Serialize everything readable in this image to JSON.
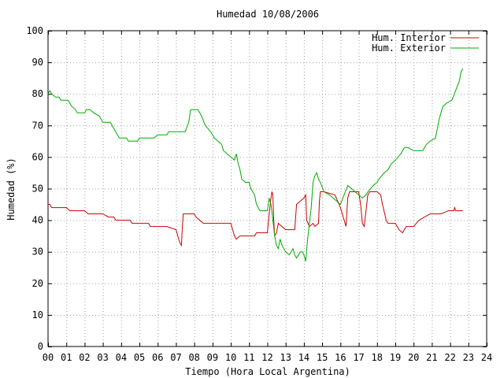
{
  "chart_data": {
    "type": "line",
    "title": "Humedad 10/08/2006",
    "xlabel": "Tiempo (Hora Local Argentina)",
    "ylabel": "Humedad (%)",
    "xlim": [
      0,
      24
    ],
    "ylim": [
      0,
      100
    ],
    "x_ticks": [
      0,
      1,
      2,
      3,
      4,
      5,
      6,
      7,
      8,
      9,
      10,
      11,
      12,
      13,
      14,
      15,
      16,
      17,
      18,
      19,
      20,
      21,
      22,
      23,
      24
    ],
    "x_tick_labels": [
      "00",
      "01",
      "02",
      "03",
      "04",
      "05",
      "06",
      "07",
      "08",
      "09",
      "10",
      "11",
      "12",
      "13",
      "14",
      "15",
      "16",
      "17",
      "18",
      "19",
      "20",
      "21",
      "22",
      "23",
      "24"
    ],
    "y_ticks": [
      0,
      10,
      20,
      30,
      40,
      50,
      60,
      70,
      80,
      90,
      100
    ],
    "y_tick_labels": [
      "0",
      "10",
      "20",
      "30",
      "40",
      "50",
      "60",
      "70",
      "80",
      "90",
      "100"
    ],
    "grid": true,
    "legend_position": "top-right",
    "series": [
      {
        "name": "Hum. Interior",
        "color": "#cc0000",
        "points": [
          [
            0,
            45
          ],
          [
            0.1,
            45
          ],
          [
            0.2,
            44
          ],
          [
            1,
            44
          ],
          [
            1.2,
            43
          ],
          [
            2,
            43
          ],
          [
            2.2,
            42
          ],
          [
            3,
            42
          ],
          [
            3.3,
            41
          ],
          [
            3.6,
            41
          ],
          [
            3.7,
            40
          ],
          [
            4.5,
            40
          ],
          [
            4.6,
            39
          ],
          [
            5.5,
            39
          ],
          [
            5.6,
            38
          ],
          [
            6.5,
            38
          ],
          [
            7,
            37
          ],
          [
            7.1,
            35
          ],
          [
            7.2,
            33
          ],
          [
            7.3,
            32
          ],
          [
            7.35,
            38
          ],
          [
            7.4,
            42
          ],
          [
            8,
            42
          ],
          [
            8.1,
            41
          ],
          [
            8.3,
            40
          ],
          [
            8.5,
            39
          ],
          [
            10.0,
            39
          ],
          [
            10.1,
            37
          ],
          [
            10.2,
            35
          ],
          [
            10.3,
            34
          ],
          [
            10.5,
            35
          ],
          [
            11.3,
            35
          ],
          [
            11.4,
            36
          ],
          [
            12.0,
            36
          ],
          [
            12.1,
            42
          ],
          [
            12.2,
            47
          ],
          [
            12.25,
            49
          ],
          [
            12.3,
            48
          ],
          [
            12.35,
            40
          ],
          [
            12.4,
            35
          ],
          [
            12.5,
            36
          ],
          [
            12.6,
            39
          ],
          [
            12.8,
            38
          ],
          [
            13.0,
            37
          ],
          [
            13.5,
            37
          ],
          [
            13.6,
            45
          ],
          [
            14.0,
            47
          ],
          [
            14.1,
            48
          ],
          [
            14.15,
            40
          ],
          [
            14.3,
            38
          ],
          [
            14.5,
            39
          ],
          [
            14.6,
            38
          ],
          [
            14.8,
            39
          ],
          [
            14.85,
            46
          ],
          [
            14.9,
            49
          ],
          [
            15.1,
            49
          ],
          [
            15.7,
            48
          ],
          [
            16.0,
            44
          ],
          [
            16.2,
            40
          ],
          [
            16.3,
            38
          ],
          [
            16.4,
            47
          ],
          [
            16.5,
            49
          ],
          [
            17.0,
            49
          ],
          [
            17.1,
            45
          ],
          [
            17.2,
            39
          ],
          [
            17.3,
            38
          ],
          [
            17.4,
            43
          ],
          [
            17.5,
            48
          ],
          [
            17.6,
            49
          ],
          [
            18.0,
            49
          ],
          [
            18.2,
            48
          ],
          [
            18.3,
            45
          ],
          [
            18.5,
            40
          ],
          [
            18.6,
            39
          ],
          [
            19.0,
            39
          ],
          [
            19.2,
            37
          ],
          [
            19.4,
            36
          ],
          [
            19.6,
            38
          ],
          [
            20.0,
            38
          ],
          [
            20.3,
            40
          ],
          [
            20.6,
            41
          ],
          [
            20.9,
            42
          ],
          [
            21.5,
            42
          ],
          [
            21.9,
            43
          ],
          [
            22.2,
            43
          ],
          [
            22.25,
            44
          ],
          [
            22.3,
            43
          ],
          [
            22.7,
            43
          ]
        ]
      },
      {
        "name": "Hum. Exterior",
        "color": "#00aa00",
        "points": [
          [
            0,
            80
          ],
          [
            0.1,
            81
          ],
          [
            0.2,
            80
          ],
          [
            0.4,
            79
          ],
          [
            0.6,
            79
          ],
          [
            0.7,
            78
          ],
          [
            1.1,
            78
          ],
          [
            1.3,
            76
          ],
          [
            1.5,
            75
          ],
          [
            1.6,
            74
          ],
          [
            2,
            74
          ],
          [
            2.1,
            75
          ],
          [
            2.3,
            75
          ],
          [
            2.5,
            74
          ],
          [
            2.8,
            73
          ],
          [
            3,
            71
          ],
          [
            3.4,
            71
          ],
          [
            3.6,
            69
          ],
          [
            3.8,
            67
          ],
          [
            3.9,
            66
          ],
          [
            4.3,
            66
          ],
          [
            4.4,
            65
          ],
          [
            4.9,
            65
          ],
          [
            5.0,
            66
          ],
          [
            5.8,
            66
          ],
          [
            6.0,
            67
          ],
          [
            6.5,
            67
          ],
          [
            6.6,
            68
          ],
          [
            7.5,
            68
          ],
          [
            7.7,
            71
          ],
          [
            7.8,
            75
          ],
          [
            8.2,
            75
          ],
          [
            8.4,
            73
          ],
          [
            8.6,
            70
          ],
          [
            8.9,
            68
          ],
          [
            9.1,
            66
          ],
          [
            9.3,
            65
          ],
          [
            9.5,
            64
          ],
          [
            9.6,
            62
          ],
          [
            9.8,
            61
          ],
          [
            10.0,
            60
          ],
          [
            10.2,
            59
          ],
          [
            10.3,
            61
          ],
          [
            10.4,
            58
          ],
          [
            10.5,
            56
          ],
          [
            10.6,
            53
          ],
          [
            10.8,
            52
          ],
          [
            11.0,
            52
          ],
          [
            11.1,
            50
          ],
          [
            11.2,
            49
          ],
          [
            11.3,
            48
          ],
          [
            11.4,
            45
          ],
          [
            11.5,
            44
          ],
          [
            11.6,
            43
          ],
          [
            11.8,
            43
          ],
          [
            12.0,
            43
          ],
          [
            12.1,
            47
          ],
          [
            12.2,
            45
          ],
          [
            12.3,
            40
          ],
          [
            12.4,
            35
          ],
          [
            12.5,
            32
          ],
          [
            12.6,
            31
          ],
          [
            12.7,
            34
          ],
          [
            12.8,
            32
          ],
          [
            13.0,
            30
          ],
          [
            13.2,
            29
          ],
          [
            13.4,
            31
          ],
          [
            13.5,
            29
          ],
          [
            13.6,
            28
          ],
          [
            13.8,
            30
          ],
          [
            13.9,
            30
          ],
          [
            14.0,
            29
          ],
          [
            14.1,
            27
          ],
          [
            14.2,
            34
          ],
          [
            14.4,
            44
          ],
          [
            14.5,
            52
          ],
          [
            14.6,
            54
          ],
          [
            14.7,
            55
          ],
          [
            14.8,
            53
          ],
          [
            14.9,
            52
          ],
          [
            15.1,
            49
          ],
          [
            15.4,
            48
          ],
          [
            15.6,
            47
          ],
          [
            15.8,
            46
          ],
          [
            16.0,
            45
          ],
          [
            16.2,
            48
          ],
          [
            16.4,
            51
          ],
          [
            16.6,
            50
          ],
          [
            16.8,
            49
          ],
          [
            17.0,
            48
          ],
          [
            17.2,
            47
          ],
          [
            17.4,
            48
          ],
          [
            17.5,
            49
          ],
          [
            17.8,
            51
          ],
          [
            18.0,
            52
          ],
          [
            18.1,
            53
          ],
          [
            18.4,
            55
          ],
          [
            18.6,
            56
          ],
          [
            18.8,
            58
          ],
          [
            19.0,
            59
          ],
          [
            19.3,
            61
          ],
          [
            19.5,
            63
          ],
          [
            19.7,
            63
          ],
          [
            20.0,
            62
          ],
          [
            20.3,
            62
          ],
          [
            20.5,
            62
          ],
          [
            20.7,
            64
          ],
          [
            20.9,
            65
          ],
          [
            21.2,
            66
          ],
          [
            21.4,
            72
          ],
          [
            21.6,
            76
          ],
          [
            21.8,
            77
          ],
          [
            22.1,
            78
          ],
          [
            22.3,
            81
          ],
          [
            22.5,
            84
          ],
          [
            22.6,
            87
          ],
          [
            22.7,
            88
          ]
        ]
      }
    ]
  }
}
